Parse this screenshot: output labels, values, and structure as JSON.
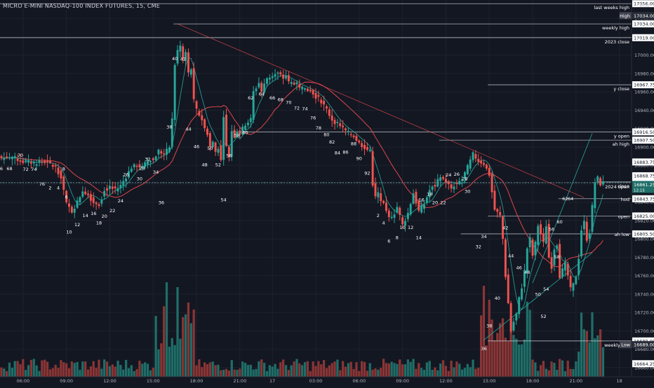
{
  "header": {
    "symbol_line": "MICRO E-MINI NASDAQ-100 INDEX FUTURES, 15, CME",
    "currency": "USD"
  },
  "colors": {
    "background": "#131722",
    "grid": "#1e222d",
    "axis_text": "#b2b5be",
    "up": "#26a69a",
    "down": "#ef5350",
    "vol_up": "#1f6e68",
    "vol_down": "#8a3535",
    "level_line": "#c9ccd4",
    "ma_fast": "#e0474c",
    "ma_slow": "#26a69a",
    "trend": "#e0474c"
  },
  "chart_data": {
    "type": "candlestick",
    "title": "MICRO E-MINI NASDAQ-100 INDEX FUTURES, 15, CME",
    "ylim": [
      16650,
      17060
    ],
    "y_ticks": [
      16660,
      16680,
      16700,
      16720,
      16740,
      16760,
      16780,
      16800,
      16820,
      16840,
      16860,
      16880,
      16900,
      16920,
      16940,
      16960,
      16980,
      17000,
      17020,
      17040
    ],
    "x_ticks": [
      {
        "bar": 8,
        "label": "06:00"
      },
      {
        "bar": 24,
        "label": "09:00"
      },
      {
        "bar": 40,
        "label": "12:00"
      },
      {
        "bar": 56,
        "label": "15:00"
      },
      {
        "bar": 72,
        "label": "18:00"
      },
      {
        "bar": 88,
        "label": "21:00"
      },
      {
        "bar": 100,
        "label": "17"
      },
      {
        "bar": 116,
        "label": "03:00"
      },
      {
        "bar": 132,
        "label": "06:00"
      },
      {
        "bar": 148,
        "label": "09:00"
      },
      {
        "bar": 164,
        "label": "12:00"
      },
      {
        "bar": 180,
        "label": "15:00"
      },
      {
        "bar": 196,
        "label": "18:00"
      },
      {
        "bar": 212,
        "label": "21:00"
      },
      {
        "bar": 228,
        "label": "18"
      }
    ],
    "close_path": [
      [
        0,
        16888
      ],
      [
        4,
        16889
      ],
      [
        8,
        16884
      ],
      [
        12,
        16883
      ],
      [
        16,
        16884
      ],
      [
        20,
        16878
      ],
      [
        22,
        16868
      ],
      [
        24,
        16838
      ],
      [
        26,
        16830
      ],
      [
        28,
        16840
      ],
      [
        30,
        16853
      ],
      [
        32,
        16848
      ],
      [
        34,
        16840
      ],
      [
        36,
        16838
      ],
      [
        38,
        16852
      ],
      [
        40,
        16857
      ],
      [
        42,
        16853
      ],
      [
        44,
        16858
      ],
      [
        46,
        16868
      ],
      [
        48,
        16878
      ],
      [
        50,
        16880
      ],
      [
        52,
        16878
      ],
      [
        54,
        16885
      ],
      [
        56,
        16886
      ],
      [
        58,
        16896
      ],
      [
        60,
        16892
      ],
      [
        62,
        16900
      ],
      [
        63,
        16930
      ],
      [
        64,
        16990
      ],
      [
        65,
        17005
      ],
      [
        66,
        17010
      ],
      [
        67,
        16995
      ],
      [
        68,
        17003
      ],
      [
        69,
        16980
      ],
      [
        70,
        16985
      ],
      [
        71,
        16950
      ],
      [
        72,
        16940
      ],
      [
        73,
        16935
      ],
      [
        74,
        16930
      ],
      [
        75,
        16920
      ],
      [
        76,
        16915
      ],
      [
        77,
        16900
      ],
      [
        78,
        16905
      ],
      [
        79,
        16895
      ],
      [
        80,
        16900
      ],
      [
        81,
        16885
      ],
      [
        82,
        16935
      ],
      [
        83,
        16900
      ],
      [
        84,
        16890
      ],
      [
        85,
        16918
      ],
      [
        86,
        16912
      ],
      [
        87,
        16918
      ],
      [
        88,
        16915
      ],
      [
        90,
        16925
      ],
      [
        92,
        16930
      ],
      [
        93,
        16960
      ],
      [
        94,
        16965
      ],
      [
        95,
        16970
      ],
      [
        96,
        16960
      ],
      [
        97,
        16968
      ],
      [
        98,
        16975
      ],
      [
        100,
        16978
      ],
      [
        102,
        16980
      ],
      [
        104,
        16975
      ],
      [
        105,
        16978
      ],
      [
        106,
        16970
      ],
      [
        108,
        16970
      ],
      [
        110,
        16966
      ],
      [
        112,
        16962
      ],
      [
        114,
        16962
      ],
      [
        116,
        16955
      ],
      [
        118,
        16950
      ],
      [
        120,
        16940
      ],
      [
        122,
        16930
      ],
      [
        124,
        16925
      ],
      [
        126,
        16920
      ],
      [
        128,
        16915
      ],
      [
        130,
        16912
      ],
      [
        132,
        16904
      ],
      [
        134,
        16900
      ],
      [
        136,
        16895
      ],
      [
        137,
        16860
      ],
      [
        138,
        16845
      ],
      [
        139,
        16850
      ],
      [
        140,
        16840
      ],
      [
        141,
        16838
      ],
      [
        142,
        16830
      ],
      [
        144,
        16822
      ],
      [
        146,
        16835
      ],
      [
        148,
        16815
      ],
      [
        150,
        16828
      ],
      [
        152,
        16850
      ],
      [
        154,
        16830
      ],
      [
        156,
        16838
      ],
      [
        158,
        16853
      ],
      [
        160,
        16858
      ],
      [
        162,
        16868
      ],
      [
        164,
        16862
      ],
      [
        166,
        16855
      ],
      [
        168,
        16862
      ],
      [
        170,
        16865
      ],
      [
        172,
        16878
      ],
      [
        174,
        16892
      ],
      [
        176,
        16885
      ],
      [
        178,
        16882
      ],
      [
        180,
        16870
      ],
      [
        182,
        16832
      ],
      [
        184,
        16825
      ],
      [
        185,
        16800
      ],
      [
        186,
        16760
      ],
      [
        187,
        16730
      ],
      [
        188,
        16700
      ],
      [
        189,
        16710
      ],
      [
        190,
        16718
      ],
      [
        191,
        16735
      ],
      [
        192,
        16748
      ],
      [
        193,
        16765
      ],
      [
        194,
        16790
      ],
      [
        195,
        16800
      ],
      [
        196,
        16782
      ],
      [
        197,
        16795
      ],
      [
        198,
        16815
      ],
      [
        199,
        16805
      ],
      [
        200,
        16795
      ],
      [
        201,
        16815
      ],
      [
        202,
        16780
      ],
      [
        203,
        16770
      ],
      [
        204,
        16790
      ],
      [
        205,
        16795
      ],
      [
        206,
        16760
      ],
      [
        208,
        16772
      ],
      [
        209,
        16760
      ],
      [
        210,
        16745
      ],
      [
        211,
        16750
      ],
      [
        212,
        16760
      ],
      [
        213,
        16780
      ],
      [
        214,
        16810
      ],
      [
        215,
        16818
      ],
      [
        216,
        16800
      ],
      [
        217,
        16808
      ],
      [
        218,
        16835
      ],
      [
        219,
        16862
      ],
      [
        220,
        16866
      ],
      [
        221,
        16860
      ],
      [
        222,
        16861
      ]
    ],
    "swing_labels": [
      {
        "bar": 0,
        "label": "6",
        "pos": "below",
        "price": 16881
      },
      {
        "bar": 3,
        "label": "68",
        "pos": "below",
        "price": 16881
      },
      {
        "bar": 7,
        "label": "70",
        "pos": "above",
        "price": 16887
      },
      {
        "bar": 9,
        "label": "72",
        "pos": "below",
        "price": 16880
      },
      {
        "bar": 12,
        "label": "74",
        "pos": "below",
        "price": 16880
      },
      {
        "bar": 15,
        "label": "76",
        "pos": "below",
        "price": 16864
      },
      {
        "bar": 18,
        "label": "2",
        "pos": "below",
        "price": 16860
      },
      {
        "bar": 21,
        "label": "4",
        "pos": "below",
        "price": 16860
      },
      {
        "bar": 23,
        "label": "8",
        "pos": "above",
        "price": 16872
      },
      {
        "bar": 24,
        "label": "6",
        "pos": "below",
        "price": 16850
      },
      {
        "bar": 25,
        "label": "10",
        "pos": "below",
        "price": 16812
      },
      {
        "bar": 28,
        "label": "12",
        "pos": "below",
        "price": 16820
      },
      {
        "bar": 31,
        "label": "14",
        "pos": "below",
        "price": 16830
      },
      {
        "bar": 34,
        "label": "16",
        "pos": "below",
        "price": 16832
      },
      {
        "bar": 36,
        "label": "18",
        "pos": "below",
        "price": 16822
      },
      {
        "bar": 38,
        "label": "20",
        "pos": "below",
        "price": 16829
      },
      {
        "bar": 41,
        "label": "22",
        "pos": "below",
        "price": 16835
      },
      {
        "bar": 44,
        "label": "24",
        "pos": "below",
        "price": 16846
      },
      {
        "bar": 46,
        "label": "26",
        "pos": "above",
        "price": 16866
      },
      {
        "bar": 52,
        "label": "28",
        "pos": "above",
        "price": 16873
      },
      {
        "bar": 51,
        "label": "30",
        "pos": "below",
        "price": 16870
      },
      {
        "bar": 54,
        "label": "32",
        "pos": "above",
        "price": 16883
      },
      {
        "bar": 57,
        "label": "34",
        "pos": "below",
        "price": 16877
      },
      {
        "bar": 59,
        "label": "36",
        "pos": "below",
        "price": 16844
      },
      {
        "bar": 62,
        "label": "38",
        "pos": "above",
        "price": 16918
      },
      {
        "bar": 64,
        "label": "40",
        "pos": "above",
        "price": 16992
      },
      {
        "bar": 67,
        "label": "42",
        "pos": "below",
        "price": 17000
      },
      {
        "bar": 69,
        "label": "44",
        "pos": "below",
        "price": 16924
      },
      {
        "bar": 72,
        "label": "46",
        "pos": "below",
        "price": 16905
      },
      {
        "bar": 75,
        "label": "48",
        "pos": "below",
        "price": 16885
      },
      {
        "bar": 77,
        "label": "50",
        "pos": "below",
        "price": 16903
      },
      {
        "bar": 80,
        "label": "52",
        "pos": "below",
        "price": 16885
      },
      {
        "bar": 82,
        "label": "54",
        "pos": "below",
        "price": 16847
      },
      {
        "bar": 84,
        "label": "56",
        "pos": "below",
        "price": 16895
      },
      {
        "bar": 87,
        "label": "58",
        "pos": "below",
        "price": 16917
      },
      {
        "bar": 90,
        "label": "60",
        "pos": "below",
        "price": 16920
      },
      {
        "bar": 92,
        "label": "62",
        "pos": "below",
        "price": 16958
      },
      {
        "bar": 96,
        "label": "64",
        "pos": "below",
        "price": 16962
      },
      {
        "bar": 100,
        "label": "66",
        "pos": "below",
        "price": 16958
      },
      {
        "bar": 103,
        "label": "68",
        "pos": "below",
        "price": 16956
      },
      {
        "bar": 106,
        "label": "70",
        "pos": "below",
        "price": 16953
      },
      {
        "bar": 109,
        "label": "72",
        "pos": "below",
        "price": 16947
      },
      {
        "bar": 112,
        "label": "74",
        "pos": "below",
        "price": 16946
      },
      {
        "bar": 115,
        "label": "76",
        "pos": "below",
        "price": 16936
      },
      {
        "bar": 117,
        "label": "78",
        "pos": "below",
        "price": 16925
      },
      {
        "bar": 120,
        "label": "80",
        "pos": "below",
        "price": 16918
      },
      {
        "bar": 122,
        "label": "82",
        "pos": "below",
        "price": 16910
      },
      {
        "bar": 124,
        "label": "84",
        "pos": "below",
        "price": 16898
      },
      {
        "bar": 127,
        "label": "86",
        "pos": "below",
        "price": 16899
      },
      {
        "bar": 130,
        "label": "88",
        "pos": "below",
        "price": 16908
      },
      {
        "bar": 132,
        "label": "90",
        "pos": "below",
        "price": 16892
      },
      {
        "bar": 135,
        "label": "92",
        "pos": "below",
        "price": 16876
      },
      {
        "bar": 139,
        "label": "2",
        "pos": "below",
        "price": 16830
      },
      {
        "bar": 141,
        "label": "4",
        "pos": "below",
        "price": 16822
      },
      {
        "bar": 143,
        "label": "6",
        "pos": "below",
        "price": 16802
      },
      {
        "bar": 146,
        "label": "8",
        "pos": "below",
        "price": 16806
      },
      {
        "bar": 148,
        "label": "10",
        "pos": "below",
        "price": 16817
      },
      {
        "bar": 151,
        "label": "12",
        "pos": "below",
        "price": 16817
      },
      {
        "bar": 154,
        "label": "14",
        "pos": "below",
        "price": 16806
      },
      {
        "bar": 155,
        "label": "16",
        "pos": "below",
        "price": 16847
      },
      {
        "bar": 158,
        "label": "18",
        "pos": "below",
        "price": 16853
      },
      {
        "bar": 160,
        "label": "20",
        "pos": "below",
        "price": 16844
      },
      {
        "bar": 163,
        "label": "22",
        "pos": "below",
        "price": 16844
      },
      {
        "bar": 165,
        "label": "24",
        "pos": "below",
        "price": 16874
      },
      {
        "bar": 168,
        "label": "26",
        "pos": "below",
        "price": 16875
      },
      {
        "bar": 171,
        "label": "28",
        "pos": "below",
        "price": 16870
      },
      {
        "bar": 172,
        "label": "30",
        "pos": "below",
        "price": 16856
      },
      {
        "bar": 176,
        "label": "32",
        "pos": "below",
        "price": 16796
      },
      {
        "bar": 178,
        "label": "34",
        "pos": "below",
        "price": 16807
      },
      {
        "bar": 178,
        "label": "36",
        "pos": "below",
        "price": 16685
      },
      {
        "bar": 180,
        "label": "38",
        "pos": "below",
        "price": 16710
      },
      {
        "bar": 183,
        "label": "40",
        "pos": "below",
        "price": 16740
      },
      {
        "bar": 186,
        "label": "42",
        "pos": "above",
        "price": 16808
      },
      {
        "bar": 188,
        "label": "44",
        "pos": "below",
        "price": 16786
      },
      {
        "bar": 191,
        "label": "46",
        "pos": "below",
        "price": 16773
      },
      {
        "bar": 194,
        "label": "48",
        "pos": "below",
        "price": 16768
      },
      {
        "bar": 198,
        "label": "50",
        "pos": "below",
        "price": 16744
      },
      {
        "bar": 200,
        "label": "52",
        "pos": "below",
        "price": 16720
      },
      {
        "bar": 201,
        "label": "54",
        "pos": "below",
        "price": 16750
      },
      {
        "bar": 203,
        "label": "56",
        "pos": "below",
        "price": 16815
      },
      {
        "bar": 205,
        "label": "58",
        "pos": "below",
        "price": 16785
      },
      {
        "bar": 206,
        "label": "60",
        "pos": "below",
        "price": 16823
      },
      {
        "bar": 208,
        "label": "62",
        "pos": "below",
        "price": 16848
      },
      {
        "bar": 210,
        "label": "64",
        "pos": "below",
        "price": 16848
      }
    ],
    "levels": [
      {
        "price": 17056.0,
        "label": "last weeks high",
        "price_label": "17056.00",
        "label_style": "dark",
        "start_bar": 0
      },
      {
        "price": 17034.0,
        "label": "weekly high",
        "price_label": "17034.00",
        "label_style": "dark",
        "start_bar": 64
      },
      {
        "price": 17019.0,
        "label": "2023 close",
        "price_label": "17019.00",
        "label_style": "dark",
        "start_bar": 0
      },
      {
        "price": 16967.75,
        "label": "y close",
        "price_label": "16967.75",
        "label_style": "dark",
        "start_bar": 180
      },
      {
        "price": 16916.5,
        "label": "y open",
        "price_label": "16916.50",
        "label_style": "dark",
        "start_bar": 86
      },
      {
        "price": 16907.5,
        "label": "ah high",
        "price_label": "16907.50",
        "label_style": "dark",
        "start_bar": 162
      },
      {
        "price": 16862.0,
        "label": "close",
        "price_label": "16862.00",
        "label_style": "dark",
        "start_bar": 220
      },
      {
        "price": 16861.25,
        "label": "2024 open",
        "price_label": "16861.25",
        "label_style": "dark",
        "start_bar": 0,
        "dashed": true
      },
      {
        "price": 16843.75,
        "label": "hod",
        "price_label": "16843.75",
        "label_style": "dark",
        "start_bar": 206
      },
      {
        "price": 16825.0,
        "label": "open",
        "price_label": "16825.00",
        "label_style": "dark",
        "start_bar": 180
      },
      {
        "price": 16805.5,
        "label": "ah low",
        "price_label": "16805.50",
        "label_style": "dark",
        "start_bar": 170
      },
      {
        "price": 16689.0,
        "label": "weekly low",
        "price_label": "16689.00",
        "label_style": "dark",
        "start_bar": 180
      }
    ],
    "price_tags": [
      {
        "price": 17043.0,
        "text": "High",
        "value": "17034.00",
        "style": "high"
      },
      {
        "price": 16883.75,
        "value": "16883.75",
        "style": "plain"
      },
      {
        "price": 16868.75,
        "value": "16868.75",
        "style": "plain"
      },
      {
        "price": 16685.0,
        "text": "Low",
        "value": "16689.00",
        "style": "low"
      },
      {
        "price": 16664.25,
        "value": "16664.25",
        "style": "plain"
      },
      {
        "price": 16857.0,
        "value": "16861.25",
        "sub": "12:15",
        "style": "current"
      }
    ]
  }
}
